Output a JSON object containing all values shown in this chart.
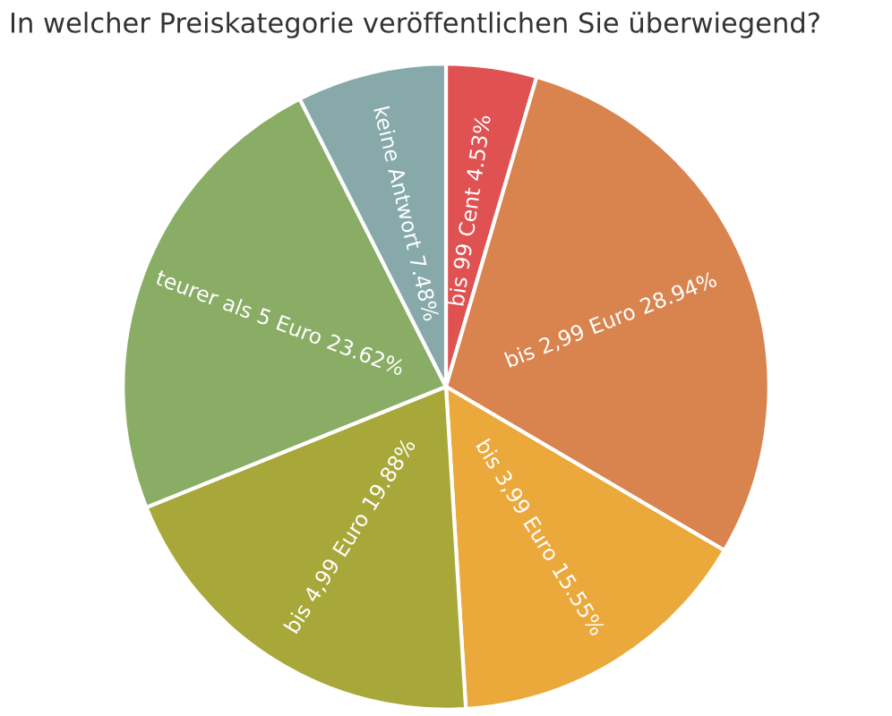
{
  "chart_data": {
    "type": "pie",
    "title": "In welcher Preiskategorie veröffentlichen Sie überwiegend?",
    "categories": [
      "bis 99 Cent",
      "bis 2,99 Euro",
      "bis 3,99 Euro",
      "bis 4,99 Euro",
      "teurer als 5 Euro",
      "keine Antwort"
    ],
    "values": [
      4.53,
      28.94,
      15.55,
      19.88,
      23.62,
      7.48
    ],
    "value_labels": [
      "4.53%",
      "28.94%",
      "15.55%",
      "19.88%",
      "23.62%",
      "7.48%"
    ],
    "colors": [
      "#e05252",
      "#d9844f",
      "#eba93c",
      "#a8a83a",
      "#8aad66",
      "#87a9aa"
    ]
  }
}
